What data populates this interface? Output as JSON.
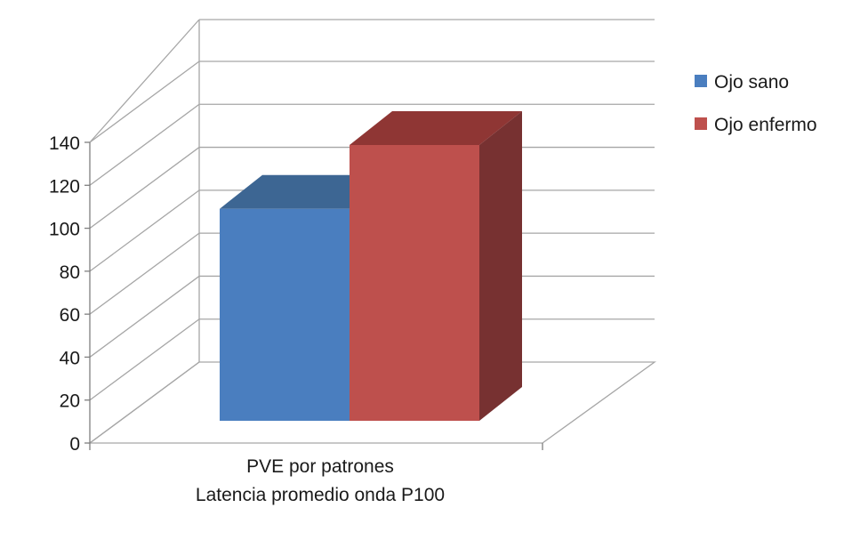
{
  "chart_data": {
    "type": "bar",
    "categories": [
      "PVE por patrones\nLatencia promedio onda P100"
    ],
    "category_lines": [
      "PVE por patrones",
      "Latencia promedio onda P100"
    ],
    "series": [
      {
        "name": "Ojo sano",
        "values": [
          103
        ],
        "color": "#4a7ebf",
        "top_color": "#3d6693",
        "side_color": "#375b86"
      },
      {
        "name": "Ojo enfermo",
        "values": [
          134
        ],
        "color": "#be504d",
        "top_color": "#8f3634",
        "side_color": "#773131"
      }
    ],
    "ylim": [
      0,
      140
    ],
    "yticks": [
      "0",
      "20",
      "40",
      "60",
      "80",
      "100",
      "120",
      "140"
    ],
    "grid": true,
    "legend_position": "right",
    "three_d": true
  }
}
